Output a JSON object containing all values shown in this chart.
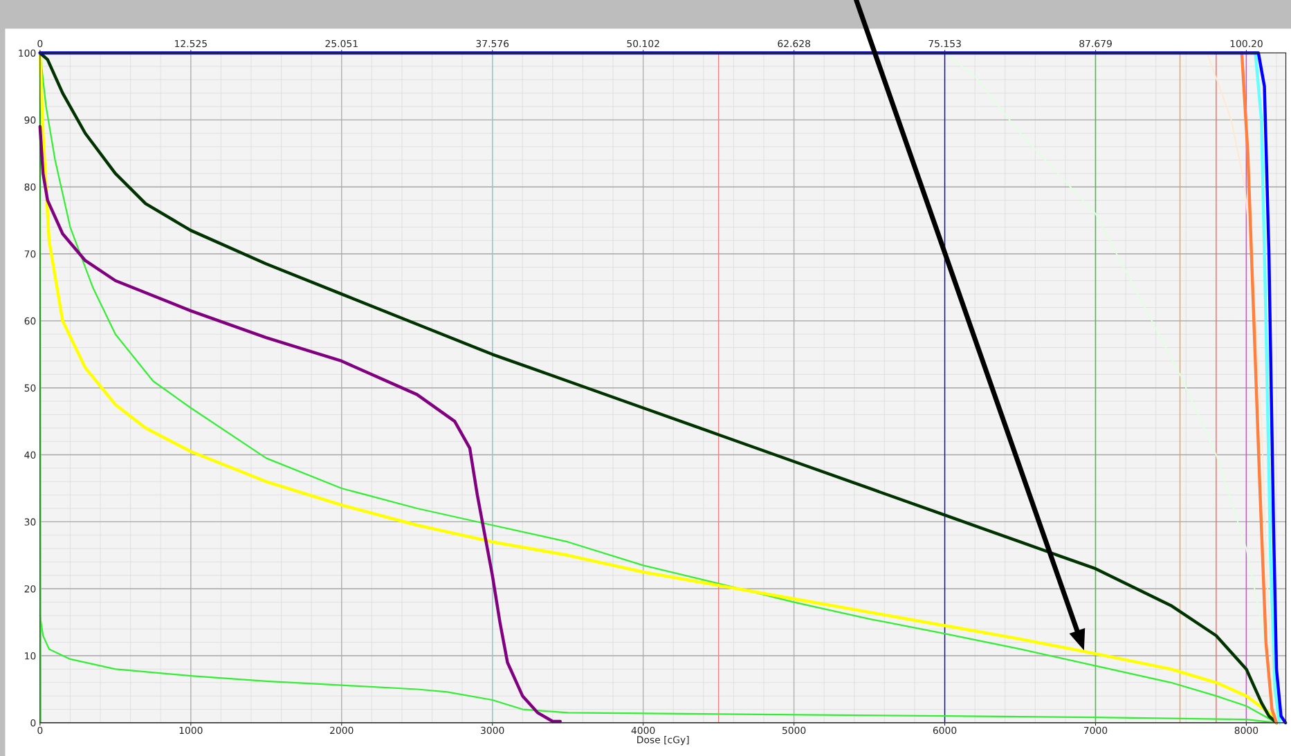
{
  "chart_data": {
    "type": "line",
    "xlabel": "Dose [cGy]",
    "xlim": [
      0,
      8262
    ],
    "xticks": [
      0,
      1000,
      2000,
      3000,
      4000,
      5000,
      6000,
      7000,
      8000
    ],
    "ylim": [
      0,
      100
    ],
    "yticks": [
      0,
      10,
      20,
      30,
      40,
      50,
      60,
      70,
      80,
      90,
      100
    ],
    "x2lim": [
      0,
      103.48
    ],
    "x2ticks": [
      0,
      12.525,
      25.051,
      37.576,
      50.102,
      62.628,
      75.153,
      87.679,
      {
        "value": 100.2,
        "label": "100.20"
      }
    ],
    "grid": true,
    "marker": "none",
    "line_style": "solid",
    "series": [
      {
        "color": "#ffe8d0",
        "x": [
          7740,
          7900,
          7990,
          8050,
          8100,
          8140,
          8180,
          8220
        ],
        "values": [
          100,
          90,
          80,
          65,
          45,
          20,
          5,
          0
        ]
      },
      {
        "color": "#e0ffe0",
        "x": [
          6000,
          6200,
          6500,
          7000,
          7560,
          7800,
          8000,
          8100,
          8180,
          8230
        ],
        "values": [
          100,
          96.5,
          88,
          76,
          52,
          40,
          26,
          15,
          4,
          0
        ]
      },
      {
        "color": "#33ff33",
        "x": [
          0,
          5
        ],
        "values": [
          100,
          0
        ]
      },
      {
        "color": "#33ee33",
        "x": [
          0,
          40,
          100,
          200,
          350,
          500,
          750,
          1000,
          1500,
          2000,
          2500,
          3000,
          3500,
          4000,
          4500,
          5000,
          5500,
          6000,
          6500,
          7000,
          7500,
          7800,
          8000,
          8200
        ],
        "values": [
          100,
          92,
          84,
          74,
          65,
          58,
          51,
          47,
          39.5,
          35,
          32,
          29.5,
          27,
          23.5,
          20.8,
          18,
          15.5,
          13.3,
          11,
          8.5,
          6,
          4,
          2.5,
          0
        ]
      },
      {
        "color": "#33ee33",
        "x": [
          0,
          20,
          60,
          200,
          500,
          1000,
          1500,
          2000,
          2500,
          2700,
          3000,
          3200,
          3500,
          4500,
          6000,
          7000,
          8000,
          8200
        ],
        "values": [
          16,
          13,
          11,
          9.5,
          8,
          7,
          6.2,
          5.6,
          5,
          4.6,
          3.4,
          2,
          1.5,
          1.3,
          1,
          0.8,
          0.5,
          0
        ]
      },
      {
        "color": "#ffff00",
        "x": [
          0,
          20,
          60,
          150,
          300,
          500,
          700,
          1000,
          1500,
          2000,
          2500,
          3000,
          3500,
          4000,
          4500,
          5000,
          5500,
          6000,
          6500,
          7000,
          7500,
          7800,
          8000,
          8150,
          8200
        ],
        "values": [
          100,
          88,
          72,
          60,
          53,
          47.5,
          44,
          40.5,
          36,
          32.5,
          29.5,
          27,
          25,
          22.5,
          20.5,
          18.5,
          16.5,
          14.5,
          12.5,
          10.3,
          8,
          6,
          4,
          1.5,
          0
        ]
      },
      {
        "color": "#800080",
        "x": [
          0,
          20,
          50,
          150,
          300,
          500,
          1000,
          1500,
          2000,
          2500,
          2750,
          2850,
          2900,
          2950,
          3000,
          3050,
          3100,
          3200,
          3300,
          3400,
          3450
        ],
        "values": [
          89,
          82,
          78,
          73,
          69,
          66,
          61.5,
          57.5,
          54,
          49,
          45,
          41,
          34,
          28,
          22,
          15,
          9,
          4,
          1.5,
          0.2,
          0.2
        ]
      },
      {
        "color": "#003300",
        "x": [
          0,
          50,
          150,
          300,
          500,
          700,
          1000,
          1500,
          2000,
          2500,
          3000,
          3500,
          4000,
          4500,
          5000,
          5500,
          6000,
          6500,
          7000,
          7500,
          7800,
          8000,
          8100,
          8150,
          8200
        ],
        "values": [
          100,
          99,
          94,
          88,
          82,
          77.5,
          73.5,
          68.5,
          64,
          59.5,
          55,
          51,
          47,
          43,
          39,
          35,
          31,
          27,
          23,
          17.5,
          13,
          8,
          3,
          1,
          0
        ]
      },
      {
        "color": "#ff7f3f",
        "x": [
          7970,
          8010,
          8050,
          8090,
          8130,
          8170,
          8200
        ],
        "values": [
          100,
          85,
          60,
          35,
          12,
          2,
          0
        ]
      },
      {
        "color": "#66ffff",
        "x": [
          8060,
          8100,
          8130,
          8160,
          8190,
          8220
        ],
        "values": [
          100,
          90,
          60,
          25,
          5,
          0
        ]
      },
      {
        "color": "#0000ff",
        "x": [
          0,
          8080,
          8120,
          8150,
          8180,
          8200,
          8230,
          8260
        ],
        "values": [
          100,
          100,
          95,
          70,
          30,
          8,
          1,
          0
        ]
      }
    ],
    "ref_lines": [
      {
        "axis": "x",
        "value": 3000,
        "color": "#7fd4d0"
      },
      {
        "axis": "x",
        "value": 4500,
        "color": "#f08080"
      },
      {
        "axis": "x",
        "value": 6000,
        "color": "#0000ff"
      },
      {
        "axis": "x",
        "value": 7000,
        "color": "#33cc33"
      },
      {
        "axis": "x",
        "value": 7560,
        "color": "#ff9933"
      },
      {
        "axis": "x",
        "value": 7800,
        "color": "#ff6666"
      },
      {
        "axis": "x",
        "value": 8000,
        "color": "#ff33ff"
      }
    ]
  }
}
